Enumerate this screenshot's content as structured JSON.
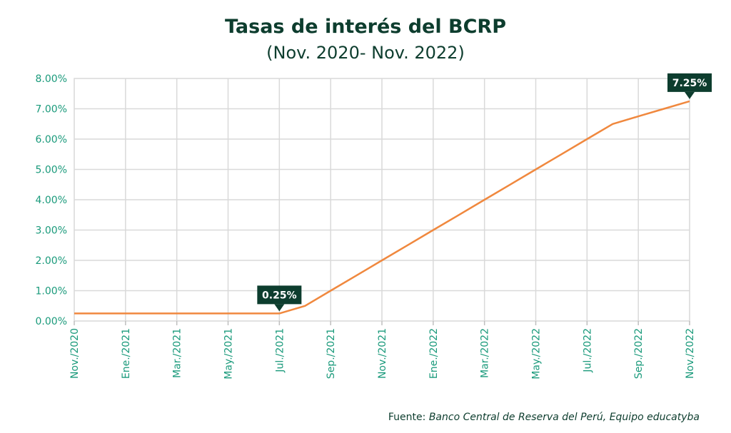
{
  "title": "Tasas de interés del BCRP",
  "subtitle": "(Nov. 2020- Nov. 2022)",
  "source_label": "Fuente:",
  "source_text": "Banco Central de Reserva del Perú, Equipo educatyba",
  "colors": {
    "line": "#f0883e",
    "axis_text": "#1a9a7b",
    "title": "#0d3d2e",
    "callout": "#0d3d2e",
    "grid": "#d9d9d9"
  },
  "chart_data": {
    "type": "line",
    "title": "Tasas de interés del BCRP",
    "subtitle": "(Nov. 2020- Nov. 2022)",
    "xlabel": "",
    "ylabel": "",
    "ylim": [
      0,
      8
    ],
    "yticks": [
      "0.00%",
      "1.00%",
      "2.00%",
      "3.00%",
      "4.00%",
      "5.00%",
      "6.00%",
      "7.00%",
      "8.00%"
    ],
    "xticks": [
      "Nov./2020",
      "Ene./2021",
      "Mar./2021",
      "May./2021",
      "Jul./2021",
      "Sep./2021",
      "Nov./2021",
      "Ene./2022",
      "Mar./2022",
      "May./2022",
      "Jul./2022",
      "Sep./2022",
      "Nov./2022"
    ],
    "grid": true,
    "series": [
      {
        "points": [
          {
            "x": "Nov./2020",
            "y": 0.25
          },
          {
            "x": "Dic./2020",
            "y": 0.25
          },
          {
            "x": "Ene./2021",
            "y": 0.25
          },
          {
            "x": "Feb./2021",
            "y": 0.25
          },
          {
            "x": "Mar./2021",
            "y": 0.25
          },
          {
            "x": "Abr./2021",
            "y": 0.25
          },
          {
            "x": "May./2021",
            "y": 0.25
          },
          {
            "x": "Jun./2021",
            "y": 0.25
          },
          {
            "x": "Jul./2021",
            "y": 0.25
          },
          {
            "x": "Ago./2021",
            "y": 0.5
          },
          {
            "x": "Sep./2021",
            "y": 1.0
          },
          {
            "x": "Oct./2021",
            "y": 1.5
          },
          {
            "x": "Nov./2021",
            "y": 2.0
          },
          {
            "x": "Dic./2021",
            "y": 2.5
          },
          {
            "x": "Ene./2022",
            "y": 3.0
          },
          {
            "x": "Feb./2022",
            "y": 3.5
          },
          {
            "x": "Mar./2022",
            "y": 4.0
          },
          {
            "x": "Abr./2022",
            "y": 4.5
          },
          {
            "x": "May./2022",
            "y": 5.0
          },
          {
            "x": "Jun./2022",
            "y": 5.5
          },
          {
            "x": "Jul./2022",
            "y": 6.0
          },
          {
            "x": "Ago./2022",
            "y": 6.5
          },
          {
            "x": "Sep./2022",
            "y": 6.75
          },
          {
            "x": "Oct./2022",
            "y": 7.0
          },
          {
            "x": "Nov./2022",
            "y": 7.25
          }
        ]
      }
    ],
    "annotations": [
      {
        "x": "Jul./2021",
        "y": 0.25,
        "label": "0.25%"
      },
      {
        "x": "Nov./2022",
        "y": 7.25,
        "label": "7.25%"
      }
    ]
  }
}
